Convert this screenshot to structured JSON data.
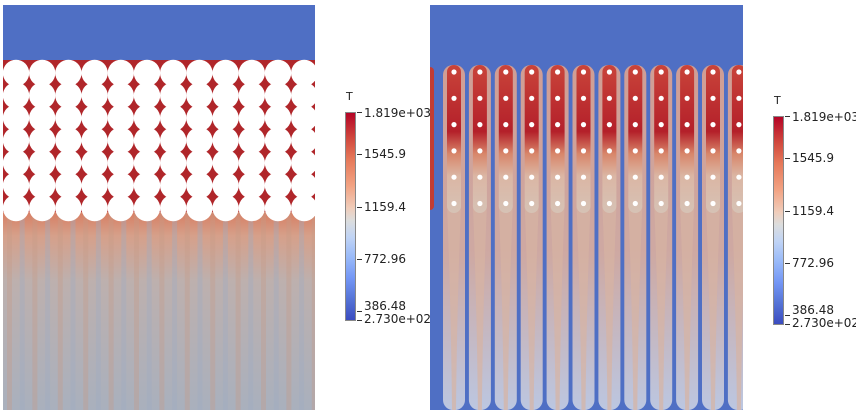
{
  "figure": {
    "left_panel": {
      "description_name": "temperature field with packed circular particles",
      "colorbar": {
        "title": "T",
        "max_label": "1.819e+03",
        "labels": [
          "1545.9",
          "1159.4",
          "772.96",
          "386.48"
        ],
        "min_label": "2.730e+02"
      }
    },
    "right_panel": {
      "description_name": "temperature field with small particles and plumes",
      "colorbar": {
        "title": "T",
        "max_label": "1.819e+03",
        "labels": [
          "1545.9",
          "1159.4",
          "772.96",
          "386.48"
        ],
        "min_label": "2.730e+02"
      }
    }
  },
  "colors": {
    "cold": "#4f6fc4",
    "hot": "#b40426",
    "mid": "#dcdddd"
  }
}
